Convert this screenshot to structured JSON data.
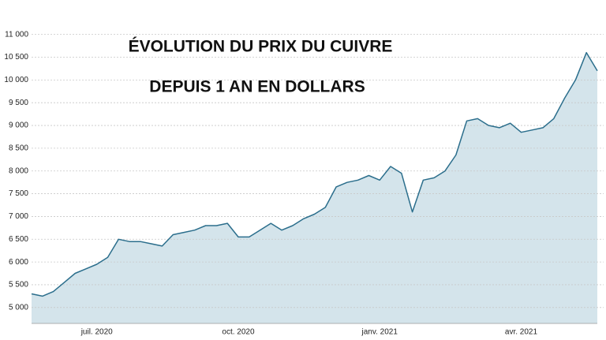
{
  "chart_data": {
    "type": "area",
    "title": "ÉVOLUTION DU PRIX DU CUIVRE",
    "subtitle": "DEPUIS 1 AN EN DOLLARS",
    "categories": [
      null,
      null,
      null,
      null,
      null,
      null,
      "juil. 2020",
      null,
      null,
      null,
      null,
      null,
      null,
      null,
      null,
      null,
      null,
      null,
      null,
      "oct. 2020",
      null,
      null,
      null,
      null,
      null,
      null,
      null,
      null,
      null,
      null,
      null,
      null,
      "janv. 2021",
      null,
      null,
      null,
      null,
      null,
      null,
      null,
      null,
      null,
      null,
      null,
      null,
      "avr. 2021",
      null,
      null,
      null,
      null,
      null,
      null,
      null
    ],
    "values": [
      5300,
      5250,
      5350,
      5550,
      5750,
      5850,
      5950,
      6100,
      6500,
      6450,
      6450,
      6400,
      6350,
      6600,
      6650,
      6700,
      6800,
      6800,
      6850,
      6550,
      6550,
      6700,
      6850,
      6700,
      6800,
      6950,
      7050,
      7200,
      7650,
      7750,
      7800,
      7900,
      7800,
      8100,
      7950,
      7100,
      7800,
      7850,
      8000,
      8350,
      9100,
      9150,
      9000,
      8950,
      9050,
      8850,
      8900,
      8950,
      9150,
      9600,
      10000,
      10600,
      10200
    ],
    "color": "#2b6e8c",
    "fill": "#d4e4eb",
    "ylim": [
      4650,
      11150
    ],
    "yticks": [
      {
        "value": 5000,
        "label": "5 000"
      },
      {
        "value": 5500,
        "label": "5 500"
      },
      {
        "value": 6000,
        "label": "6 000"
      },
      {
        "value": 6500,
        "label": "6 500"
      },
      {
        "value": 7000,
        "label": "7 000"
      },
      {
        "value": 7500,
        "label": "7 500"
      },
      {
        "value": 8000,
        "label": "8 000"
      },
      {
        "value": 8500,
        "label": "8 500"
      },
      {
        "value": 9000,
        "label": "9 000"
      },
      {
        "value": 9500,
        "label": "9 500"
      },
      {
        "value": 10000,
        "label": "10 000"
      },
      {
        "value": 10500,
        "label": "10 500"
      },
      {
        "value": 11000,
        "label": "11 000"
      }
    ],
    "grid": true
  }
}
